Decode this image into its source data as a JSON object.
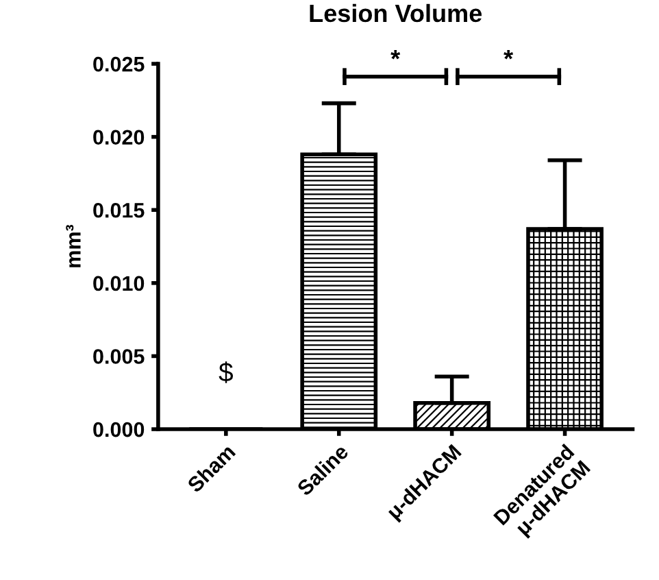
{
  "chart_data": {
    "type": "bar",
    "title": "Lesion Volume",
    "ylabel": "mm³",
    "categories": [
      "Sham",
      "Saline",
      "μ-dHACM",
      "Denatured\nμ-dHACM"
    ],
    "values": [
      0,
      0.0188,
      0.0018,
      0.0137
    ],
    "errors": [
      null,
      0.0035,
      0.0018,
      0.0047
    ],
    "color": "#000000",
    "ylim": [
      0,
      0.025
    ],
    "yticks": [
      {
        "value": 0,
        "label": "0.000"
      },
      {
        "value": 0.005,
        "label": "0.005"
      },
      {
        "value": 0.01,
        "label": "0.010"
      },
      {
        "value": 0.015,
        "label": "0.015"
      },
      {
        "value": 0.02,
        "label": "0.020"
      },
      {
        "value": 0.025,
        "label": "0.025"
      }
    ],
    "grid": false,
    "legend": false,
    "annotations": [
      "$",
      "*",
      "*"
    ]
  }
}
